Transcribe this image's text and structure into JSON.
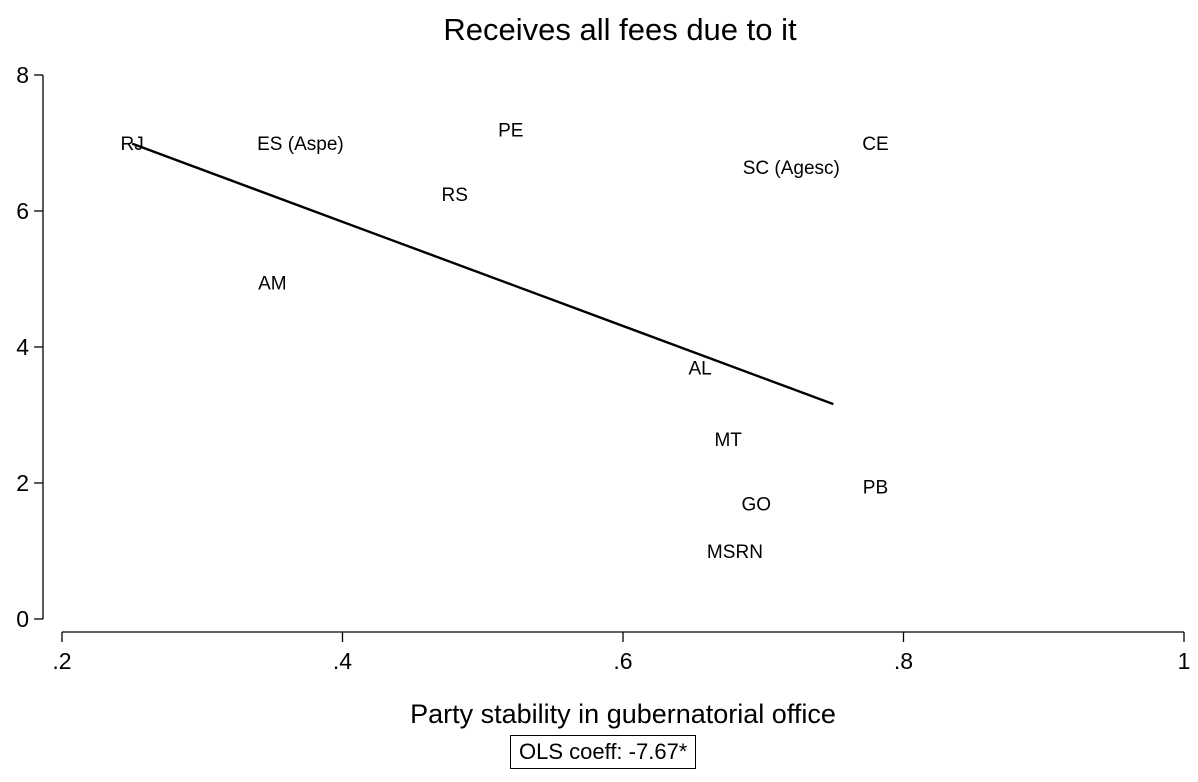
{
  "chart_data": {
    "type": "scatter",
    "title": "Receives all fees due to it",
    "xlabel": "Party stability in gubernatorial office",
    "ylabel": "",
    "xlim": [
      0.2,
      1.0
    ],
    "ylim": [
      0,
      8
    ],
    "xticks": [
      0.2,
      0.4,
      0.6,
      0.8,
      1.0
    ],
    "xtick_labels": [
      ".2",
      ".4",
      ".6",
      ".8",
      "1"
    ],
    "yticks": [
      0,
      2,
      4,
      6,
      8
    ],
    "ytick_labels": [
      "0",
      "2",
      "4",
      "6",
      "8"
    ],
    "grid": false,
    "points": [
      {
        "label": "RJ",
        "x": 0.25,
        "y": 7.0
      },
      {
        "label": "ES (Aspe)",
        "x": 0.37,
        "y": 7.0
      },
      {
        "label": "PE",
        "x": 0.52,
        "y": 7.2
      },
      {
        "label": "RS",
        "x": 0.48,
        "y": 6.25
      },
      {
        "label": "AM",
        "x": 0.35,
        "y": 4.95
      },
      {
        "label": "CE",
        "x": 0.78,
        "y": 7.0
      },
      {
        "label": "SC (Agesc)",
        "x": 0.72,
        "y": 6.65
      },
      {
        "label": "AL",
        "x": 0.655,
        "y": 3.7
      },
      {
        "label": "MT",
        "x": 0.675,
        "y": 2.65
      },
      {
        "label": "PB",
        "x": 0.78,
        "y": 1.95
      },
      {
        "label": "GO",
        "x": 0.695,
        "y": 1.7
      },
      {
        "label": "MS",
        "x": 0.67,
        "y": 1.0
      },
      {
        "label": "RN",
        "x": 0.69,
        "y": 1.0
      }
    ],
    "fit_line": {
      "x": [
        0.25,
        0.75
      ],
      "y": [
        6.99,
        3.16
      ]
    },
    "annotation": "OLS coeff: -7.67*"
  }
}
